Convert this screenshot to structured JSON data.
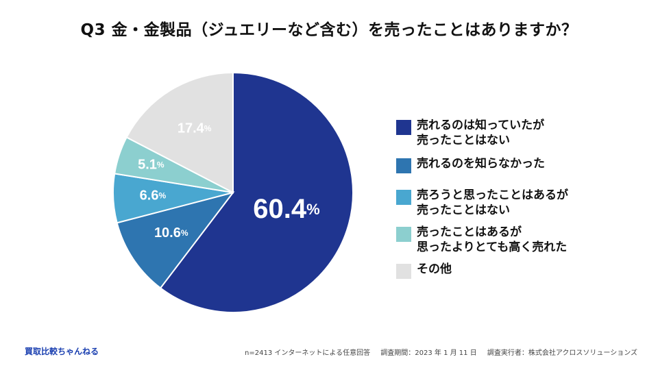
{
  "title": "Q3 金・金製品（ジュエリーなど含む）を売ったことはありますか？",
  "chart_data": {
    "type": "pie",
    "title": "Q3 金・金製品（ジュエリーなど含む）を売ったことはありますか？",
    "unit": "%",
    "slices": [
      {
        "label": "売れるのは知っていたが売ったことはない",
        "value": 60.4,
        "display": "60.4",
        "color": "#1f3590"
      },
      {
        "label": "売れるのを知らなかった",
        "value": 10.6,
        "display": "10.6",
        "color": "#2e75b0"
      },
      {
        "label": "売ろうと思ったことはあるが売ったことはない",
        "value": 6.6,
        "display": "6.6",
        "color": "#49a7d0"
      },
      {
        "label": "売ったことはあるが思ったよりとても高く売れた",
        "value": 5.1,
        "display": "5.1",
        "color": "#8ccfcf"
      },
      {
        "label": "その他",
        "value": 17.4,
        "display": "17.4",
        "color": "#e1e1e1"
      }
    ],
    "legend": [
      {
        "lines": [
          "売れるのは知っていたが",
          "売ったことはない"
        ],
        "color": "#1f3590"
      },
      {
        "lines": [
          "売れるのを知らなかった"
        ],
        "color": "#2e75b0"
      },
      {
        "lines": [
          "売ろうと思ったことはあるが",
          "売ったことはない"
        ],
        "color": "#49a7d0"
      },
      {
        "lines": [
          "売ったことはあるが",
          "思ったよりとても高く売れた"
        ],
        "color": "#8ccfcf"
      },
      {
        "lines": [
          "その他"
        ],
        "color": "#e1e1e1"
      }
    ],
    "legend_position": "right"
  },
  "footer": {
    "brand": "買取比較ちゃんねる",
    "sample": "n=2413 インターネットによる任意回答",
    "period": "調査期間：2023 年 1 月 11 日",
    "company": "調査実行者：株式会社アクロスソリューションズ"
  }
}
